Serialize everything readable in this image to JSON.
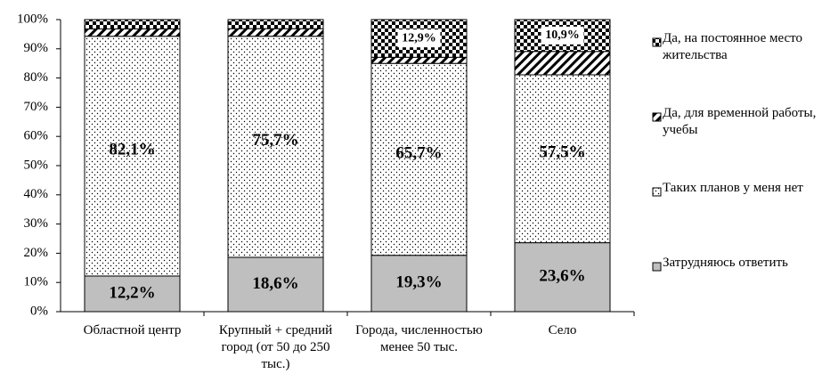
{
  "chart_data": {
    "type": "stacked_bar",
    "categories": [
      "Областной центр",
      "Крупный + средний город (от 50 до 250 тыс.)",
      "Города, численностью менее 50 тыс.",
      "Село"
    ],
    "series": [
      {
        "name": "Затрудняюсь ответить",
        "color": "#bfbfbf",
        "pattern": "solid",
        "values": [
          12.2,
          18.6,
          19.3,
          23.6
        ],
        "value_labels": [
          "12,2%",
          "18,6%",
          "19,3%",
          "23,6%"
        ]
      },
      {
        "name": "Таких планов у меня нет",
        "color": "#000000",
        "pattern": "dots",
        "values": [
          82.1,
          75.7,
          65.7,
          57.5
        ],
        "value_labels": [
          "82,1%",
          "75,7%",
          "65,7%",
          "57,5%"
        ]
      },
      {
        "name": "Да, для временной работы, учебы",
        "color": "#000000",
        "pattern": "hatch",
        "values": [
          2.5,
          2.6,
          2.1,
          8.0
        ]
      },
      {
        "name": "Да, на постоянное место жительства",
        "color": "#000000",
        "pattern": "checker",
        "values": [
          3.2,
          3.1,
          12.9,
          10.9
        ],
        "value_labels": [
          null,
          null,
          "12,9%",
          "10,9%"
        ]
      }
    ],
    "ylim": [
      0,
      100
    ],
    "yticks": [
      {
        "value": 0,
        "label": "0%"
      },
      {
        "value": 10,
        "label": "10%"
      },
      {
        "value": 20,
        "label": "20%"
      },
      {
        "value": 30,
        "label": "30%"
      },
      {
        "value": 40,
        "label": "40%"
      },
      {
        "value": 50,
        "label": "50%"
      },
      {
        "value": 60,
        "label": "60%"
      },
      {
        "value": 70,
        "label": "70%"
      },
      {
        "value": 80,
        "label": "80%"
      },
      {
        "value": 90,
        "label": "90%"
      },
      {
        "value": 100,
        "label": "100%"
      }
    ],
    "legend": "right"
  }
}
